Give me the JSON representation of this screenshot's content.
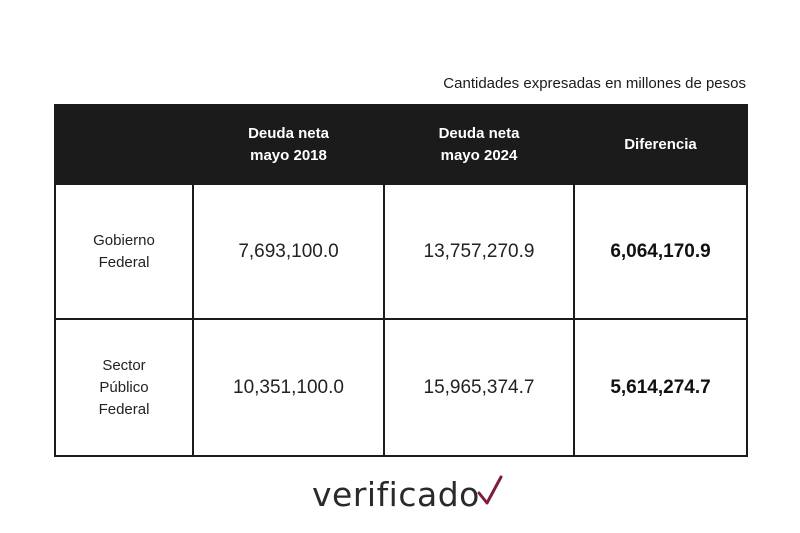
{
  "caption": "Cantidades expresadas en millones de pesos",
  "table": {
    "headers": [
      {
        "line1": "",
        "line2": ""
      },
      {
        "line1": "Deuda neta",
        "line2": "mayo 2018"
      },
      {
        "line1": "Deuda neta",
        "line2": "mayo 2024"
      },
      {
        "line1": "Diferencia",
        "line2": ""
      }
    ],
    "rows": [
      {
        "label_lines": [
          "Gobierno",
          "Federal"
        ],
        "debt_2018": "7,693,100.0",
        "debt_2024": "13,757,270.9",
        "difference": "6,064,170.9"
      },
      {
        "label_lines": [
          "Sector",
          "Público",
          "Federal"
        ],
        "debt_2018": "10,351,100.0",
        "debt_2024": "15,965,374.7",
        "difference": "5,614,274.7"
      }
    ]
  },
  "logo": {
    "text": "verificado",
    "check_color": "#7a1f3d"
  }
}
